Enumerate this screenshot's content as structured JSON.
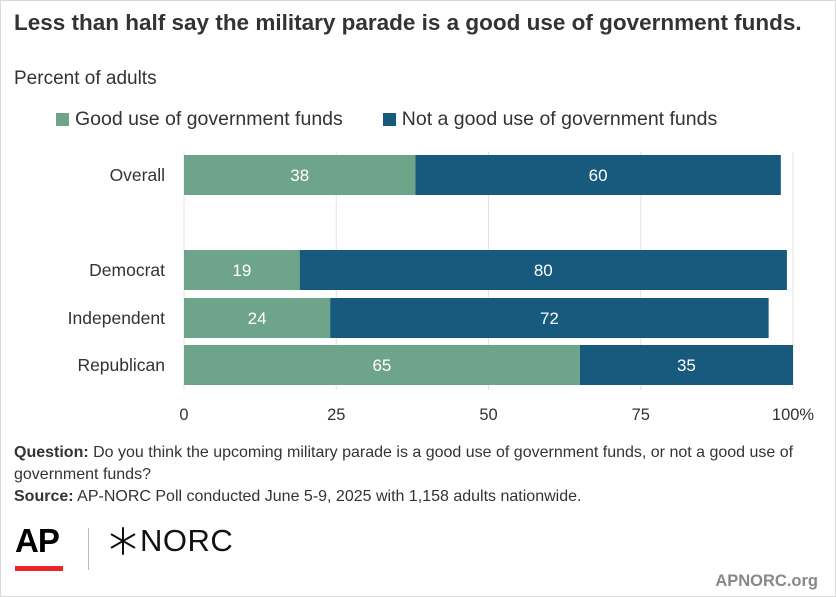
{
  "header": {
    "title": "Less than half say the military parade is a good use of government funds.",
    "subtitle": "Percent of adults"
  },
  "legend": [
    {
      "label": "Good use of government funds",
      "color": "#6ea489"
    },
    {
      "label": "Not a good use of government funds",
      "color": "#185a7d"
    }
  ],
  "chart_data": {
    "type": "bar",
    "orientation": "horizontal",
    "stacked": true,
    "categories": [
      "Overall",
      "Democrat",
      "Independent",
      "Republican"
    ],
    "series": [
      {
        "name": "Good use of government funds",
        "values": [
          38,
          19,
          24,
          65
        ],
        "color": "#6ea489"
      },
      {
        "name": "Not a good use of government funds",
        "values": [
          60,
          80,
          72,
          35
        ],
        "color": "#185a7d"
      }
    ],
    "xlim": [
      0,
      100
    ],
    "xticks": [
      0,
      25,
      50,
      75,
      100
    ],
    "xtick_labels": [
      "0",
      "25",
      "50",
      "75",
      "100%"
    ],
    "grid": true,
    "title": "Less than half say the military parade is a good use of government funds.",
    "subtitle": "Percent of adults",
    "legend_position": "top-left"
  },
  "footer": {
    "question_label": "Question:",
    "question_text": "Do you think the upcoming military parade is a good use of government funds, or not a good use of government funds?",
    "source_label": "Source:",
    "source_text": "AP-NORC Poll conducted June 5-9, 2025 with 1,158 adults nationwide."
  },
  "branding": {
    "ap_logo": "AP",
    "norc_logo": "NORC",
    "site": "APNORC.org",
    "ap_bar_color": "#e8262a"
  }
}
